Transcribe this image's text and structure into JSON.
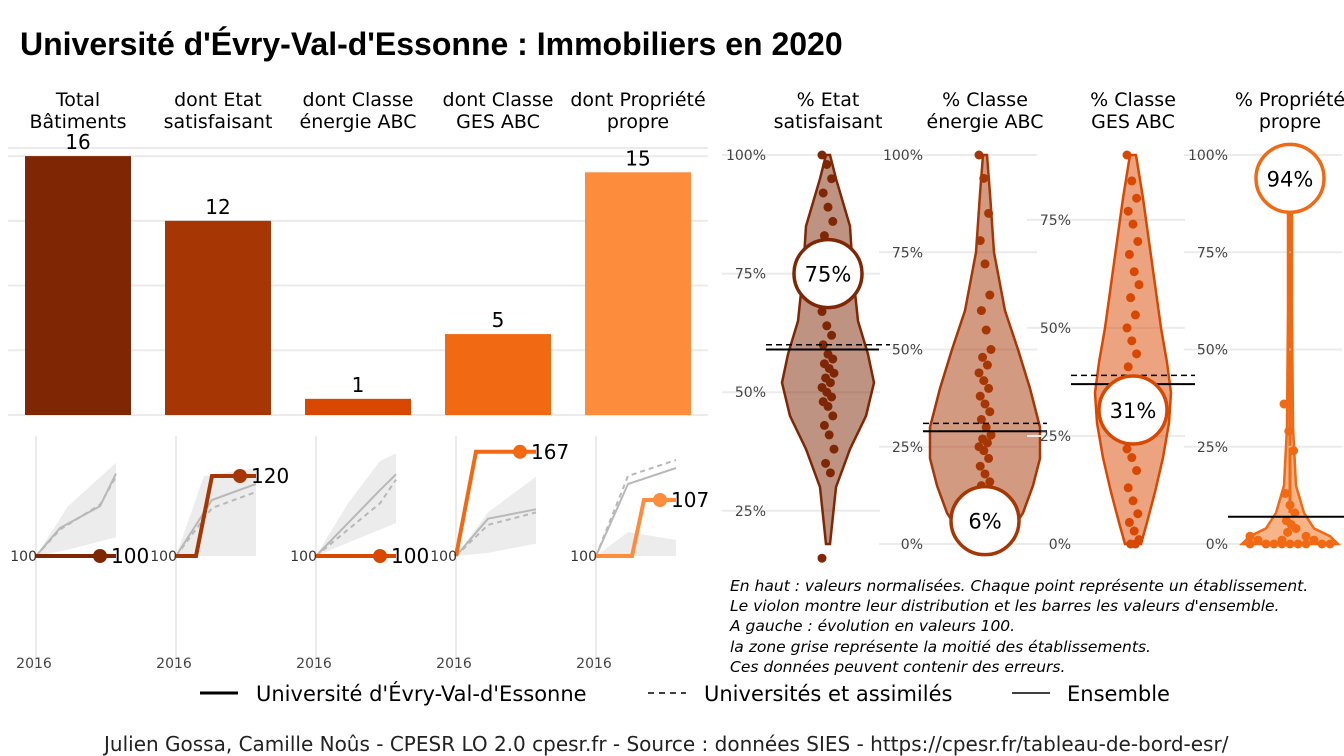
{
  "title": "Université d'Évry-Val-d'Essonne  :  Immobiliers en 2020",
  "colors": {
    "c1": "#7f2704",
    "c2": "#a63603",
    "c3": "#d94801",
    "c4": "#f16913",
    "c5": "#fd8d3c",
    "grey_band": "#ececec",
    "grey_line": "#b8b8b8",
    "gridline": "#ebebeb"
  },
  "chart_data": [
    {
      "type": "bar",
      "categories": [
        "Total\nBâtiments",
        "dont Etat\nsatisfaisant",
        "dont Classe\nénergie ABC",
        "dont Classe\nGES ABC",
        "dont Propriété\npropre"
      ],
      "values": [
        16,
        12,
        1,
        5,
        15
      ],
      "value_labels": [
        "16",
        "12",
        "1",
        "5",
        "15"
      ],
      "ylim": [
        0,
        16.5
      ],
      "grid": true
    },
    {
      "type": "line",
      "panels": [
        {
          "name": "Total Bâtiments",
          "x_tick": "2016",
          "start_label": "100",
          "end_label": "100",
          "main": [
            [
              0,
              100
            ],
            [
              0.7,
              100
            ],
            [
              1,
              100
            ]
          ],
          "ensemble": [
            [
              0,
              100
            ],
            [
              0.3,
              118
            ],
            [
              0.8,
              132
            ],
            [
              1,
              153
            ]
          ],
          "univ": [
            [
              0,
              100
            ],
            [
              0.3,
              117
            ],
            [
              0.8,
              133
            ],
            [
              1,
              151
            ]
          ],
          "band_low": [
            [
              0,
              100
            ],
            [
              0.4,
              104
            ],
            [
              1,
              112
            ]
          ],
          "band_high": [
            [
              0,
              100
            ],
            [
              0.4,
              132
            ],
            [
              1,
              160
            ]
          ],
          "ymax": 172
        },
        {
          "name": "dont Etat satisfaisant",
          "x_tick": "2016",
          "start_label": "100",
          "end_label": "120",
          "main": [
            [
              0,
              100
            ],
            [
              0.25,
              100
            ],
            [
              0.45,
              120
            ],
            [
              1,
              120
            ]
          ],
          "ensemble": [
            [
              0,
              100
            ],
            [
              0.45,
              114
            ],
            [
              1,
              118
            ]
          ],
          "univ": [
            [
              0,
              100
            ],
            [
              0.45,
              112
            ],
            [
              1,
              116
            ]
          ],
          "band_low": [
            [
              0,
              100
            ],
            [
              0.4,
              100
            ],
            [
              1,
              100
            ]
          ],
          "band_high": [
            [
              0,
              100
            ],
            [
              0.35,
              120
            ],
            [
              1,
              122
            ]
          ],
          "ymax": 128
        },
        {
          "name": "dont Classe énergie ABC",
          "x_tick": "2016",
          "start_label": "100",
          "end_label": "100",
          "main": [
            [
              0,
              100
            ],
            [
              0.8,
              100
            ],
            [
              1,
              100
            ]
          ],
          "ensemble": [
            [
              0,
              100
            ],
            [
              0.4,
              125
            ],
            [
              0.8,
              150
            ],
            [
              1,
              162
            ]
          ],
          "univ": [
            [
              0,
              100
            ],
            [
              0.4,
              120
            ],
            [
              0.8,
              140
            ],
            [
              1,
              158
            ]
          ],
          "band_low": [
            [
              0,
              100
            ],
            [
              0.4,
              110
            ],
            [
              1,
              125
            ]
          ],
          "band_high": [
            [
              0,
              100
            ],
            [
              0.4,
              140
            ],
            [
              0.8,
              172
            ],
            [
              1,
              178
            ]
          ],
          "ymax": 185
        },
        {
          "name": "dont Classe GES ABC",
          "x_tick": "2016",
          "start_label": "100",
          "end_label": "167",
          "main": [
            [
              0,
              100
            ],
            [
              0.25,
              167
            ],
            [
              1,
              167
            ]
          ],
          "ensemble": [
            [
              0,
              100
            ],
            [
              0.4,
              124
            ],
            [
              1,
              130
            ]
          ],
          "univ": [
            [
              0,
              100
            ],
            [
              0.4,
              120
            ],
            [
              1,
              128
            ]
          ],
          "band_low": [
            [
              0,
              100
            ],
            [
              0.4,
              102
            ],
            [
              1,
              108
            ]
          ],
          "band_high": [
            [
              0,
              100
            ],
            [
              0.4,
              128
            ],
            [
              1,
              151
            ]
          ],
          "ymax": 172
        },
        {
          "name": "dont Propriété propre",
          "x_tick": "2016",
          "start_label": "100",
          "end_label": "107",
          "main": [
            [
              0,
              100
            ],
            [
              0.45,
              100
            ],
            [
              0.6,
              107
            ],
            [
              1,
              107
            ]
          ],
          "ensemble": [
            [
              0,
              100
            ],
            [
              0.4,
              109
            ],
            [
              1,
              111
            ]
          ],
          "univ": [
            [
              0,
              100
            ],
            [
              0.4,
              110
            ],
            [
              1,
              112
            ]
          ],
          "band_low": [
            [
              0,
              100
            ],
            [
              0.4,
              100
            ],
            [
              1,
              100
            ]
          ],
          "band_high": [
            [
              0,
              100
            ],
            [
              0.4,
              103
            ],
            [
              1,
              102
            ]
          ],
          "ymax": 114
        }
      ]
    },
    {
      "type": "violin",
      "panels": [
        {
          "name": "% Etat\nsatisfaisant",
          "value": 75,
          "value_label": "75%",
          "ensemble": 59,
          "univ": 60,
          "ylim": [
            18,
            100
          ],
          "ticks": [
            25,
            50,
            75,
            100
          ],
          "tick_labels": [
            "25%",
            "50%",
            "75%",
            "100%"
          ],
          "points": [
            100,
            98,
            95,
            92,
            89,
            86,
            83,
            80,
            77,
            73,
            70,
            67,
            64,
            62,
            60,
            58,
            57,
            56,
            55,
            54,
            53,
            52,
            51,
            50,
            49,
            48,
            47,
            45,
            43,
            41,
            38,
            35,
            33,
            15
          ]
        },
        {
          "name": "% Classe\nénergie ABC",
          "value": 6,
          "value_label": "6%",
          "ensemble": 29,
          "univ": 31,
          "ylim": [
            0,
            100
          ],
          "ticks": [
            0,
            25,
            50,
            75,
            100
          ],
          "tick_labels": [
            "0%",
            "25%",
            "50%",
            "75%",
            "100%"
          ],
          "points": [
            100,
            94,
            85,
            78,
            72,
            64,
            60,
            55,
            50,
            48,
            46,
            44,
            42,
            40,
            38,
            36,
            34,
            32,
            30,
            28,
            27,
            26,
            25,
            24,
            22,
            20,
            18,
            16,
            15,
            14,
            12,
            10,
            8
          ]
        },
        {
          "name": "% Classe\nGES ABC",
          "value": 31,
          "value_label": "31%",
          "ensemble": 37,
          "univ": 39,
          "ylim": [
            0,
            90
          ],
          "ticks": [
            0,
            25,
            50,
            75
          ],
          "tick_labels": [
            "0%",
            "25%",
            "50%",
            "75%"
          ],
          "points": [
            90,
            84,
            80,
            77,
            74,
            70,
            67,
            63,
            60,
            57,
            53,
            50,
            47,
            44,
            41,
            38,
            36,
            34,
            32,
            30,
            28,
            25,
            22,
            20,
            17,
            13,
            10,
            7,
            5,
            3,
            1,
            0,
            0
          ]
        },
        {
          "name": "% Propriété\npropre",
          "value": 94,
          "value_label": "94%",
          "ensemble": 7,
          "univ": 7,
          "ylim": [
            0,
            100
          ],
          "ticks": [
            0,
            25,
            50,
            75,
            100
          ],
          "tick_labels": [
            "0%",
            "25%",
            "50%",
            "75%",
            "100%"
          ],
          "points": [
            36,
            29,
            24,
            13,
            10,
            8,
            6,
            5,
            4,
            3,
            2,
            2,
            1,
            1,
            1,
            0,
            0,
            0,
            0,
            0,
            0,
            0,
            0,
            0
          ]
        }
      ]
    }
  ],
  "notes": [
    "En haut : valeurs normalisées. Chaque point représente un établissement.",
    "Le violon montre leur distribution et les barres les valeurs d'ensemble.",
    "A gauche : évolution en valeurs 100.",
    "la zone grise représente la moitié des établissements.",
    "Ces données peuvent contenir des erreurs."
  ],
  "legend": [
    {
      "label": "Université d'Évry-Val-d'Essonne",
      "style": "solid-thick"
    },
    {
      "label": "Universités et assimilés",
      "style": "dashed"
    },
    {
      "label": "Ensemble",
      "style": "solid-thin"
    }
  ],
  "caption": "Julien Gossa, Camille Noûs - CPESR LO 2.0 cpesr.fr - Source : données SIES - https://cpesr.fr/tableau-de-bord-esr/"
}
